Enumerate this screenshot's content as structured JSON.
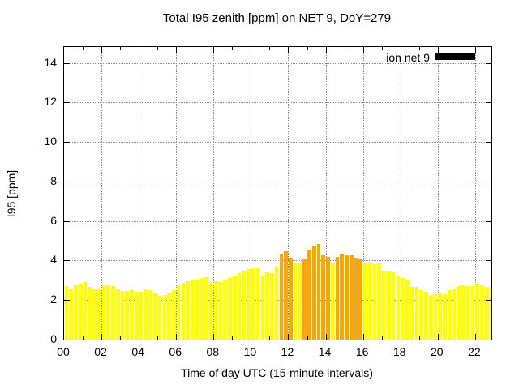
{
  "title": "Total I95 zenith [ppm] on NET 9, DoY=279",
  "legend": {
    "label": "ion net 9",
    "swatch_color": "#000000",
    "position": "top-right"
  },
  "chart_data": {
    "type": "bar",
    "title": "Total I95 zenith [ppm] on NET 9, DoY=279",
    "xlabel": "Time of day UTC (15-minute intervals)",
    "ylabel": "I95 [ppm]",
    "ylim": [
      0,
      14.8
    ],
    "xlim_hours": [
      0,
      22.875
    ],
    "grid": true,
    "legend_entries": [
      "ion net 9"
    ],
    "bar_color": "#ffff00",
    "highlight_color": "#ffa500",
    "interval_minutes": 15,
    "y_ticks": [
      0,
      2,
      4,
      6,
      8,
      10,
      12,
      14
    ],
    "x_tick_hours": [
      0,
      2,
      4,
      6,
      8,
      10,
      12,
      14,
      16,
      18,
      20,
      22
    ],
    "x_tick_labels": [
      "00",
      "02",
      "04",
      "06",
      "08",
      "10",
      "12",
      "14",
      "16",
      "18",
      "20",
      "22"
    ],
    "times": [
      "00:00",
      "00:15",
      "00:30",
      "00:45",
      "01:00",
      "01:15",
      "01:30",
      "01:45",
      "02:00",
      "02:15",
      "02:30",
      "02:45",
      "03:00",
      "03:15",
      "03:30",
      "03:45",
      "04:00",
      "04:15",
      "04:30",
      "04:45",
      "05:00",
      "05:15",
      "05:30",
      "05:45",
      "06:00",
      "06:15",
      "06:30",
      "06:45",
      "07:00",
      "07:15",
      "07:30",
      "07:45",
      "08:00",
      "08:15",
      "08:30",
      "08:45",
      "09:00",
      "09:15",
      "09:30",
      "09:45",
      "10:00",
      "10:15",
      "10:30",
      "10:45",
      "11:00",
      "11:15",
      "11:30",
      "11:45",
      "12:00",
      "12:15",
      "12:30",
      "12:45",
      "13:00",
      "13:15",
      "13:30",
      "13:45",
      "14:00",
      "14:15",
      "14:30",
      "14:45",
      "15:00",
      "15:15",
      "15:30",
      "15:45",
      "16:00",
      "16:15",
      "16:30",
      "16:45",
      "17:00",
      "17:15",
      "17:30",
      "17:45",
      "18:00",
      "18:15",
      "18:30",
      "18:45",
      "19:00",
      "19:15",
      "19:30",
      "19:45",
      "20:00",
      "20:15",
      "20:30",
      "20:45",
      "21:00",
      "21:15",
      "21:30",
      "21:45",
      "22:00",
      "22:15",
      "22:30",
      "22:45"
    ],
    "values": [
      2.7,
      2.55,
      2.75,
      2.8,
      2.9,
      2.65,
      2.6,
      2.6,
      2.75,
      2.75,
      2.7,
      2.55,
      2.45,
      2.45,
      2.5,
      2.4,
      2.4,
      2.55,
      2.5,
      2.35,
      2.2,
      2.25,
      2.35,
      2.5,
      2.75,
      2.85,
      2.95,
      3.05,
      3.0,
      3.1,
      3.15,
      2.85,
      2.95,
      2.9,
      3.0,
      3.1,
      3.2,
      3.35,
      3.45,
      3.55,
      3.6,
      3.6,
      3.2,
      3.4,
      3.35,
      3.7,
      4.3,
      4.45,
      4.15,
      3.85,
      3.9,
      4.1,
      4.5,
      4.75,
      4.85,
      4.25,
      4.2,
      3.9,
      4.2,
      4.35,
      4.25,
      4.25,
      4.15,
      4.1,
      3.85,
      3.9,
      3.8,
      3.9,
      3.5,
      3.5,
      3.4,
      3.2,
      3.1,
      3.05,
      2.65,
      2.65,
      2.5,
      2.4,
      2.25,
      2.3,
      2.35,
      2.3,
      2.5,
      2.55,
      2.7,
      2.75,
      2.7,
      2.7,
      2.8,
      2.75,
      2.65,
      2.65
    ],
    "highlighted_indices": [
      46,
      47,
      48,
      51,
      52,
      53,
      54,
      55,
      56,
      58,
      59,
      60,
      61,
      62,
      63
    ]
  }
}
